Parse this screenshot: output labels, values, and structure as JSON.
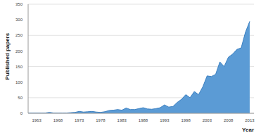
{
  "chart_data": {
    "type": "area",
    "x_label": "Year",
    "y_label": "Published papers",
    "color": "#5b9bd5",
    "x": [
      1961,
      1962,
      1963,
      1964,
      1965,
      1966,
      1967,
      1968,
      1969,
      1970,
      1971,
      1972,
      1973,
      1974,
      1975,
      1976,
      1977,
      1978,
      1979,
      1980,
      1981,
      1982,
      1983,
      1984,
      1985,
      1986,
      1987,
      1988,
      1989,
      1990,
      1991,
      1992,
      1993,
      1994,
      1995,
      1996,
      1997,
      1998,
      1999,
      2000,
      2001,
      2002,
      2003,
      2004,
      2005,
      2006,
      2007,
      2008,
      2009,
      2010,
      2011,
      2012,
      2013
    ],
    "values": [
      1,
      1,
      1,
      1,
      1,
      3,
      1,
      1,
      1,
      1,
      2,
      3,
      6,
      4,
      5,
      6,
      4,
      3,
      5,
      9,
      10,
      12,
      10,
      17,
      12,
      12,
      15,
      18,
      14,
      13,
      15,
      18,
      27,
      20,
      22,
      35,
      45,
      60,
      50,
      70,
      60,
      85,
      120,
      118,
      125,
      165,
      150,
      180,
      190,
      205,
      210,
      260,
      295
    ],
    "xlim": [
      1961,
      2014
    ],
    "xticks": [
      1963,
      1968,
      1973,
      1978,
      1983,
      1988,
      1993,
      1998,
      2003,
      2008,
      2013
    ],
    "ylim": [
      0,
      350
    ],
    "yticks": [
      0,
      50,
      100,
      150,
      200,
      250,
      300,
      350
    ],
    "grid": true
  }
}
